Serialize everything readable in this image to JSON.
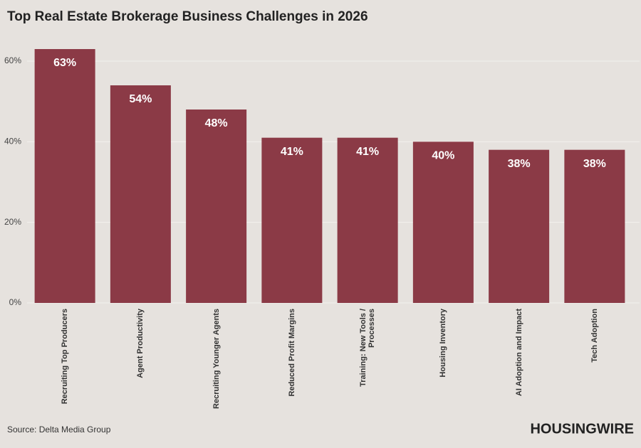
{
  "chart_data": {
    "type": "bar",
    "title": "Top Real Estate Brokerage Business Challenges in 2026",
    "categories": [
      "Recruiting Top Producers",
      "Agent Productivity",
      "Recruiting Younger Agents",
      "Reduced Profit Margins",
      "Training: New Tools / Processes",
      "Housing Inventory",
      "AI Adoption and Impact",
      "Tech Adoption"
    ],
    "values": [
      63,
      54,
      48,
      41,
      41,
      40,
      38,
      38
    ],
    "value_labels": [
      "63%",
      "54%",
      "48%",
      "41%",
      "41%",
      "40%",
      "38%",
      "38%"
    ],
    "color": "#8b3a46",
    "ylim": [
      0,
      66
    ],
    "yticks": [
      {
        "value": 0,
        "label": "0%"
      },
      {
        "value": 20,
        "label": "20%"
      },
      {
        "value": 40,
        "label": "40%"
      },
      {
        "value": 60,
        "label": "60%"
      }
    ],
    "grid": true,
    "source": "Source: Delta Media Group",
    "brand": "HOUSINGWIRE"
  }
}
